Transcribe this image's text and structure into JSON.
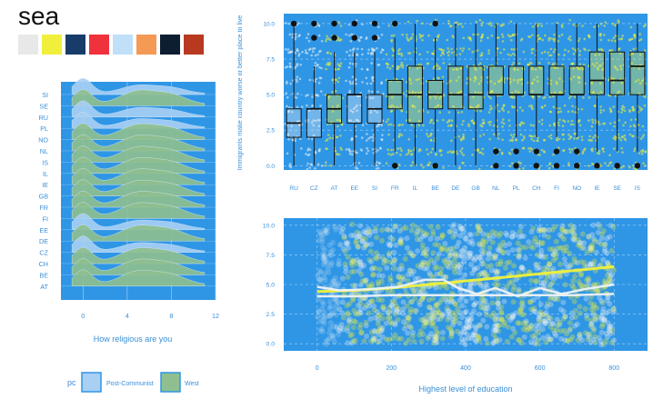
{
  "palette": {
    "name": "sea",
    "colors": [
      "#e8e8e8",
      "#f0f03c",
      "#173c6a",
      "#f0323c",
      "#bfe0f8",
      "#f49a55",
      "#0d1e30",
      "#b8391f"
    ]
  },
  "theme": {
    "panel_bg": "#2f96e6",
    "grid": "#a7d3f5",
    "axis_text": "#3a8fd8",
    "ridge_pc": "#a9cff3",
    "ridge_west": "#8fbf8e",
    "yellow": "#f1f13a",
    "whitish": "#eef2f4"
  },
  "chart_data": [
    {
      "type": "ridgeline",
      "xlabel": "How religious are you",
      "x_ticks": [
        0,
        4,
        8,
        12
      ],
      "xlim": [
        -2,
        12
      ],
      "categories": [
        "SI",
        "SE",
        "RU",
        "PL",
        "NO",
        "NL",
        "IS",
        "IL",
        "IE",
        "GB",
        "FR",
        "FI",
        "EE",
        "DE",
        "CZ",
        "CH",
        "BE",
        "AT"
      ],
      "group_by_category": [
        "Post-Communist",
        "West",
        "Post-Communist",
        "Post-Communist",
        "West",
        "West",
        "West",
        "West",
        "West",
        "West",
        "West",
        "West",
        "Post-Communist",
        "West",
        "Post-Communist",
        "West",
        "West",
        "West"
      ],
      "legend": {
        "title": "pc",
        "entries": [
          "Post-Communist",
          "West"
        ],
        "placement": "bottom"
      }
    },
    {
      "type": "boxplot",
      "ylabel": "Immigrants make country worse or better place to live",
      "categories": [
        "RU",
        "CZ",
        "AT",
        "EE",
        "SI",
        "FR",
        "IL",
        "BE",
        "DE",
        "GB",
        "NL",
        "PL",
        "CH",
        "FI",
        "NO",
        "IE",
        "SE",
        "IS"
      ],
      "y_ticks": [
        "0.0",
        "2.5",
        "5.0",
        "7.5",
        "10.0"
      ],
      "ylim": [
        -0.3,
        10.7
      ],
      "boxes": [
        {
          "q1": 2,
          "median": 3,
          "q3": 4,
          "whisker_low": 0,
          "whisker_high": 10,
          "outliers": [
            10
          ]
        },
        {
          "q1": 2,
          "median": 4,
          "q3": 4,
          "whisker_low": 0,
          "whisker_high": 7,
          "outliers": [
            9,
            10
          ]
        },
        {
          "q1": 3,
          "median": 4,
          "q3": 5,
          "whisker_low": 0,
          "whisker_high": 8,
          "outliers": [
            9,
            10
          ]
        },
        {
          "q1": 3,
          "median": 5,
          "q3": 5,
          "whisker_low": 0,
          "whisker_high": 8,
          "outliers": [
            9,
            10
          ]
        },
        {
          "q1": 3,
          "median": 4,
          "q3": 5,
          "whisker_low": 0,
          "whisker_high": 8,
          "outliers": [
            9,
            10
          ]
        },
        {
          "q1": 4,
          "median": 5,
          "q3": 6,
          "whisker_low": 1,
          "whisker_high": 9,
          "outliers": [
            0,
            10
          ]
        },
        {
          "q1": 3,
          "median": 5,
          "q3": 7,
          "whisker_low": 0,
          "whisker_high": 10,
          "outliers": []
        },
        {
          "q1": 4,
          "median": 5,
          "q3": 6,
          "whisker_low": 1,
          "whisker_high": 9,
          "outliers": [
            0,
            10
          ]
        },
        {
          "q1": 4,
          "median": 5,
          "q3": 7,
          "whisker_low": 0,
          "whisker_high": 10,
          "outliers": []
        },
        {
          "q1": 4,
          "median": 5,
          "q3": 7,
          "whisker_low": 0,
          "whisker_high": 10,
          "outliers": []
        },
        {
          "q1": 5,
          "median": 5,
          "q3": 7,
          "whisker_low": 2,
          "whisker_high": 10,
          "outliers": [
            0,
            1
          ]
        },
        {
          "q1": 5,
          "median": 5,
          "q3": 7,
          "whisker_low": 2,
          "whisker_high": 10,
          "outliers": [
            0,
            1
          ]
        },
        {
          "q1": 5,
          "median": 5,
          "q3": 7,
          "whisker_low": 2,
          "whisker_high": 10,
          "outliers": [
            0,
            1
          ]
        },
        {
          "q1": 5,
          "median": 5,
          "q3": 7,
          "whisker_low": 2,
          "whisker_high": 10,
          "outliers": [
            0,
            1
          ]
        },
        {
          "q1": 5,
          "median": 5,
          "q3": 7,
          "whisker_low": 2,
          "whisker_high": 10,
          "outliers": [
            0,
            1
          ]
        },
        {
          "q1": 5,
          "median": 6,
          "q3": 8,
          "whisker_low": 1,
          "whisker_high": 10,
          "outliers": [
            0
          ]
        },
        {
          "q1": 5,
          "median": 6,
          "q3": 8,
          "whisker_low": 1,
          "whisker_high": 10,
          "outliers": [
            0
          ]
        },
        {
          "q1": 5,
          "median": 7,
          "q3": 8,
          "whisker_low": 1,
          "whisker_high": 10,
          "outliers": [
            0
          ]
        }
      ]
    },
    {
      "type": "scatter",
      "xlabel": "Highest level of education",
      "x_ticks": [
        0,
        200,
        400,
        600,
        800
      ],
      "y_ticks": [
        "0.0",
        "2.5",
        "5.0",
        "7.5",
        "10.0"
      ],
      "xlim": [
        -90,
        890
      ],
      "ylim": [
        -0.6,
        10.6
      ],
      "trend_lines": [
        {
          "x": [
            0,
            100,
            200,
            300,
            400,
            500,
            600,
            700,
            800
          ],
          "y": [
            4.4,
            4.5,
            4.7,
            5.0,
            5.3,
            5.6,
            5.9,
            6.2,
            6.5
          ]
        },
        {
          "x": [
            0,
            60,
            140,
            220,
            290,
            340,
            380,
            430,
            480,
            540,
            600,
            660,
            720,
            800
          ],
          "y": [
            4.8,
            4.5,
            4.6,
            4.8,
            5.4,
            5.4,
            4.7,
            4.2,
            4.7,
            4.0,
            4.7,
            4.2,
            4.6,
            5.0
          ]
        },
        {
          "x": [
            0,
            100,
            200,
            300,
            400,
            500,
            600,
            700,
            800
          ],
          "y": [
            4.0,
            4.0,
            4.1,
            4.1,
            4.1,
            4.1,
            4.1,
            4.1,
            4.2
          ]
        }
      ]
    }
  ]
}
